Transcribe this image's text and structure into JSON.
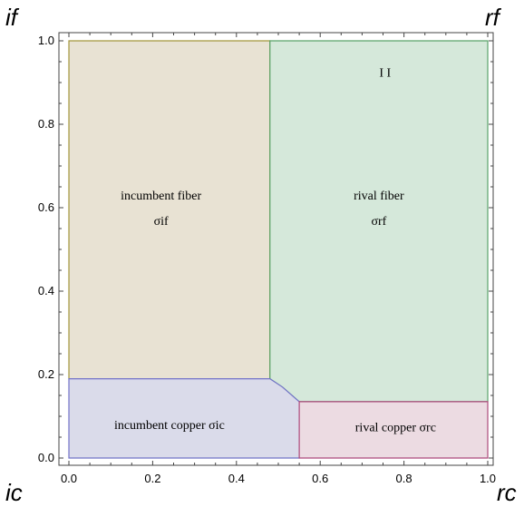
{
  "chart_data": {
    "type": "area",
    "title": "",
    "xlabel": "",
    "ylabel": "",
    "xlim": [
      0,
      1
    ],
    "ylim": [
      0,
      1
    ],
    "x_ticks": [
      "0.0",
      "0.2",
      "0.4",
      "0.6",
      "0.8",
      "1.0"
    ],
    "y_ticks": [
      "0.0",
      "0.2",
      "0.4",
      "0.6",
      "0.8",
      "1.0"
    ],
    "corner_labels": {
      "top_left": "if",
      "top_right": "rf",
      "bottom_left": "ic",
      "bottom_right": "rc"
    },
    "regions": [
      {
        "name": "incumbent fiber",
        "lines": [
          "incumbent fiber",
          "σif"
        ],
        "fill": "#e8e2d3",
        "stroke": "#a3973d",
        "polygon": [
          [
            0,
            0.19
          ],
          [
            0.48,
            0.19
          ],
          [
            0.48,
            1.0
          ],
          [
            0,
            1.0
          ]
        ],
        "label_at": [
          0.22,
          0.6
        ]
      },
      {
        "name": "rival fiber",
        "lines": [
          "rival fiber",
          "σrf"
        ],
        "fill": "#d5e8da",
        "stroke": "#5ba36a",
        "polygon": [
          [
            0.48,
            0.19
          ],
          [
            0.51,
            0.17
          ],
          [
            0.55,
            0.135
          ],
          [
            1.0,
            0.135
          ],
          [
            1.0,
            1.0
          ],
          [
            0.48,
            1.0
          ]
        ],
        "label_at": [
          0.74,
          0.6
        ]
      },
      {
        "name": "incumbent copper",
        "lines": [
          "incumbent copper σic"
        ],
        "fill": "#dadbea",
        "stroke": "#7273c8",
        "polygon": [
          [
            0,
            0
          ],
          [
            0.55,
            0
          ],
          [
            0.55,
            0.135
          ],
          [
            0.51,
            0.17
          ],
          [
            0.48,
            0.19
          ],
          [
            0,
            0.19
          ]
        ],
        "label_at": [
          0.24,
          0.08
        ]
      },
      {
        "name": "rival copper",
        "lines": [
          "rival copper σrc"
        ],
        "fill": "#ecdbe2",
        "stroke": "#ad4a7c",
        "polygon": [
          [
            0.55,
            0
          ],
          [
            1.0,
            0
          ],
          [
            1.0,
            0.135
          ],
          [
            0.55,
            0.135
          ]
        ],
        "label_at": [
          0.78,
          0.075
        ]
      }
    ],
    "annotations": [
      {
        "text": "I I",
        "at": [
          0.755,
          0.925
        ]
      }
    ],
    "grid": false
  }
}
